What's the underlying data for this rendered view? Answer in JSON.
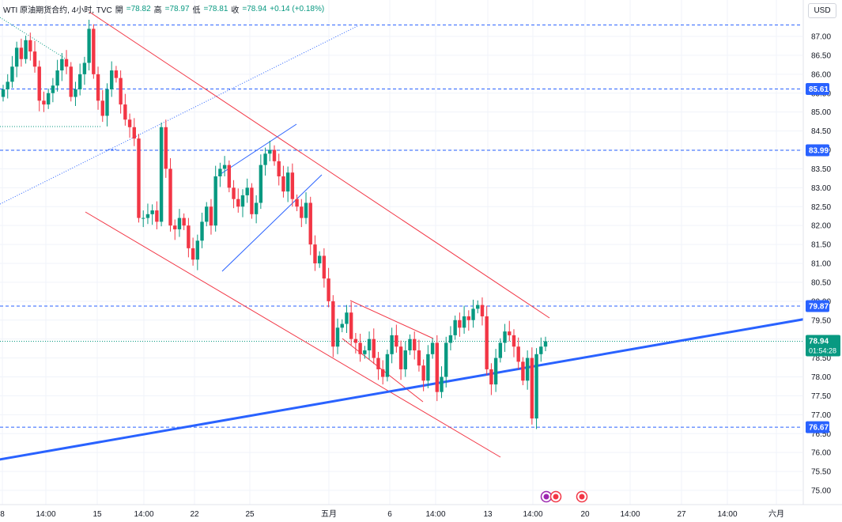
{
  "legend": {
    "symbol": "WTI 原油期货合约, 4小时, TVC",
    "open_label": "開",
    "open_value": "=78.82",
    "high_label": "高",
    "high_value": "=78.97",
    "low_label": "低",
    "low_value": "=78.81",
    "close_label": "收",
    "close_value": "=78.94",
    "change": "+0.14 (+0.18%)"
  },
  "currency_button": "USD",
  "colors": {
    "up": "#089981",
    "down": "#f23645",
    "trend_blue": "#2962ff",
    "channel_red": "#f23645",
    "level_line": "#2962ff",
    "label_bg_blue": "#2962ff",
    "price_label_bg": "#089981"
  },
  "chart_data": {
    "type": "candlestick",
    "y_axis": {
      "ticks": [
        "87.00",
        "86.50",
        "86.00",
        "85.50",
        "85.00",
        "84.50",
        "84.00",
        "83.50",
        "83.00",
        "82.50",
        "82.00",
        "81.50",
        "81.00",
        "80.50",
        "80.00",
        "79.50",
        "79.00",
        "78.50",
        "78.00",
        "77.50",
        "77.00",
        "76.50",
        "76.00",
        "75.50",
        "75.00"
      ],
      "range": [
        74.85,
        87.4
      ]
    },
    "x_axis": {
      "ticks": [
        "8",
        "14:00",
        "15",
        "14:00",
        "22",
        "25",
        "五月",
        "6",
        "14:00",
        "13",
        "14:00",
        "20",
        "14:00",
        "27",
        "14:00",
        "六月"
      ]
    },
    "levels": [
      {
        "label": "85.61",
        "value": 85.61
      },
      {
        "label": "83.99",
        "value": 83.99
      },
      {
        "label": "79.87",
        "value": 79.87
      },
      {
        "label": "76.67",
        "value": 76.67
      }
    ],
    "top_level": 87.3,
    "current_price": {
      "label": "78.94",
      "value": 78.94,
      "countdown": "01:54:28"
    },
    "candles_close": [
      85.6,
      85.8,
      86.2,
      86.7,
      86.4,
      86.9,
      86.6,
      86.2,
      85.3,
      85.2,
      85.5,
      85.7,
      86.1,
      86.4,
      86.2,
      85.4,
      85.6,
      86.0,
      86.3,
      87.2,
      86.0,
      85.3,
      84.9,
      85.6,
      86.1,
      85.9,
      85.2,
      84.8,
      84.6,
      84.3,
      82.2,
      82.2,
      82.3,
      82.4,
      82.1,
      84.6,
      83.5,
      82.0,
      81.9,
      82.2,
      82.0,
      81.4,
      81.1,
      81.6,
      82.1,
      82.5,
      82.0,
      83.3,
      83.5,
      83.6,
      83.0,
      82.7,
      82.5,
      82.8,
      83.0,
      82.3,
      82.6,
      83.6,
      83.9,
      84.0,
      83.7,
      83.3,
      82.9,
      83.4,
      82.7,
      82.5,
      82.2,
      82.6,
      81.5,
      81.0,
      81.2,
      80.6,
      80.0,
      78.8,
      79.3,
      79.4,
      79.7,
      79.0,
      78.9,
      78.6,
      78.7,
      79.0,
      78.5,
      78.2,
      78.0,
      78.6,
      79.1,
      78.8,
      78.2,
      78.7,
      79.0,
      78.7,
      78.3,
      77.9,
      78.6,
      78.9,
      77.6,
      78.0,
      78.9,
      79.1,
      79.5,
      79.3,
      79.6,
      79.5,
      79.8,
      79.9,
      79.6,
      78.2,
      77.8,
      78.5,
      78.9,
      79.2,
      79.1,
      78.8,
      78.4,
      77.9,
      78.5,
      76.9,
      78.6,
      78.8,
      78.94
    ],
    "lines": [
      {
        "type": "trend",
        "color": "blue",
        "from": [
          -5,
          75.8
        ],
        "to": [
          1065,
          79.7
        ]
      }
    ]
  }
}
